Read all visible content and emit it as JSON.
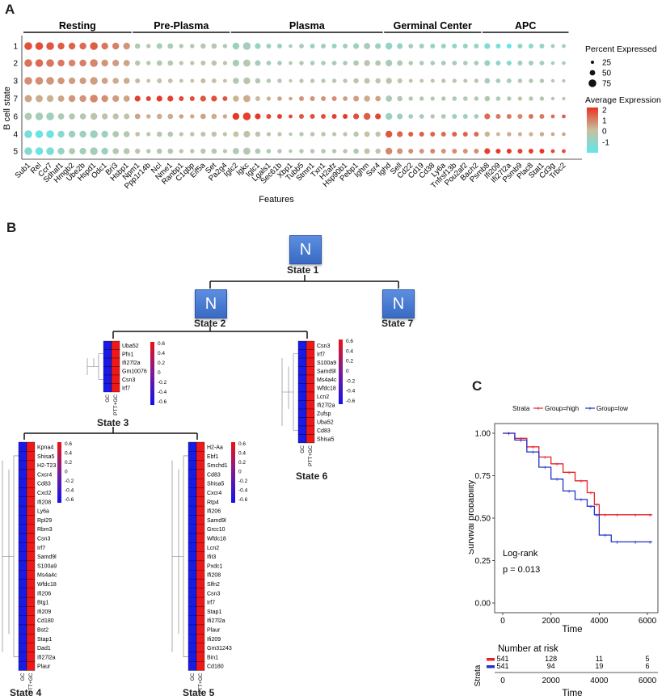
{
  "panels": {
    "a": "A",
    "b": "B",
    "c": "C"
  },
  "chart_data": [
    {
      "type": "dotplot",
      "groups": [
        "Resting",
        "Pre-Plasma",
        "Plasma",
        "Germinal Center",
        "APC"
      ],
      "genes": [
        "Sub1",
        "Rel",
        "Ccr7",
        "Sdhaf1",
        "Hmgb2",
        "Ube2b",
        "Hspd1",
        "Odc1",
        "Bri3",
        "Hsbp1",
        "Npm1",
        "Ppp1r14b",
        "Ncl",
        "Nme1",
        "Ranbp1",
        "C1qbp",
        "Eif5a",
        "Set",
        "Pa2g4",
        "Iglc2",
        "Igkc",
        "Iglc1",
        "Lgals1",
        "Sec61b",
        "Xbp1",
        "Tubb5",
        "Stmn1",
        "Txn1",
        "H2afz",
        "Hsp90b1",
        "Pebp1",
        "Ighm",
        "Ssr4",
        "Ighd",
        "Sell",
        "Cd22",
        "Cd19",
        "Cd38",
        "Ly6a",
        "Tnfrsf13b",
        "Pou2af2",
        "Bach2",
        "Psmb8",
        "Ifi209",
        "Ifi27l2a",
        "Psmb9",
        "Plac8",
        "Stat1",
        "Cd3g",
        "Trbc2"
      ],
      "states": [
        "1",
        "2",
        "3",
        "7",
        "6",
        "4",
        "5"
      ],
      "xlabel": "Features",
      "ylabel": "B cell state",
      "legend_size_title": "Percent Expressed",
      "legend_size_values": [
        "25",
        "50",
        "75"
      ],
      "legend_color_title": "Average Expression",
      "legend_color_ticks": [
        "2",
        "1",
        "0",
        "-1"
      ],
      "colors": {
        "low": "#5ee8ec",
        "mid": "#c8c0a0",
        "high": "#e8321e"
      }
    },
    {
      "type": "line",
      "legend_title": "Strata",
      "series": [
        {
          "name": "Group=high",
          "color": "#e8222a",
          "x": [
            0,
            500,
            1000,
            1500,
            2000,
            2500,
            3000,
            3500,
            3800,
            4000,
            4500,
            5000,
            6000,
            6200
          ],
          "y": [
            1.0,
            0.97,
            0.92,
            0.86,
            0.82,
            0.77,
            0.72,
            0.65,
            0.58,
            0.52,
            0.52,
            0.52,
            0.52,
            0.52
          ]
        },
        {
          "name": "Group=low",
          "color": "#2233c8",
          "x": [
            0,
            500,
            1000,
            1500,
            2000,
            2500,
            3000,
            3500,
            3800,
            4000,
            4500,
            5000,
            6000,
            6200
          ],
          "y": [
            1.0,
            0.96,
            0.89,
            0.8,
            0.73,
            0.66,
            0.61,
            0.57,
            0.52,
            0.4,
            0.36,
            0.36,
            0.36,
            0.36
          ]
        }
      ],
      "xlabel": "Time",
      "ylabel": "Survival probability",
      "xticks": [
        "0",
        "2000",
        "4000",
        "6000"
      ],
      "yticks": [
        "1.00",
        "0.75",
        "0.50",
        "0.25",
        "0.00"
      ],
      "xlim": [
        0,
        6300
      ],
      "ylim": [
        0,
        1
      ],
      "annotation_line1": "Log-rank",
      "annotation_line2": "p = 0.013",
      "risk_table": {
        "title": "Number at risk",
        "ylabel": "Strata",
        "xlabel": "Time",
        "rows": [
          {
            "color": "#e8222a",
            "values": [
              "541",
              "128",
              "11",
              "5"
            ]
          },
          {
            "color": "#2233c8",
            "values": [
              "541",
              "94",
              "19",
              "6"
            ]
          }
        ]
      }
    }
  ],
  "trajectory": {
    "node_label": "N",
    "states": {
      "s1": "State 1",
      "s2": "State 2",
      "s7": "State 7",
      "s3": "State 3",
      "s6": "State 6",
      "s4": "State 4",
      "s5": "State 5"
    },
    "heatmap_cols": [
      "GC",
      "PTT+GC"
    ],
    "scale_ticks": [
      "0.6",
      "0.4",
      "0.2",
      "0",
      "-0.2",
      "-0.4",
      "-0.6"
    ],
    "heatmaps": {
      "s2": [
        "Uba52",
        "Pfn1",
        "Ifi27l2a",
        "Gm10076",
        "Csn3",
        "Irf7"
      ],
      "s6": [
        "Csn3",
        "Irf7",
        "S100a9",
        "Samd9l",
        "Ms4a4c",
        "Wfdc18",
        "Lcn2",
        "Ifi27l2a",
        "Zufsp",
        "Uba52",
        "Cd83",
        "Shisa5"
      ],
      "s4": [
        "Kpna4",
        "Shisa5",
        "H2-T23",
        "Cxcr4",
        "Cd83",
        "Cxcl2",
        "Ifi208",
        "Ly6a",
        "Rpl29",
        "Rbm3",
        "Csn3",
        "Irf7",
        "Samd9l",
        "S100a9",
        "Ms4a4c",
        "Wfdc18",
        "Ifi206",
        "Btg1",
        "Ifi209",
        "Cd180",
        "Bst2",
        "Stap1",
        "Dad1",
        "Ifi27l2a",
        "Plaur"
      ],
      "s5": [
        "H2-Aa",
        "Ebf1",
        "Smchd1",
        "Cd83",
        "Shisa5",
        "Cxcr4",
        "Rtp4",
        "Ifi206",
        "Samd9l",
        "Grcc10",
        "Wfdc18",
        "Lcn2",
        "Ifit3",
        "Pxdc1",
        "Ifi208",
        "Slfn2",
        "Csn3",
        "Irf7",
        "Stap1",
        "Ifi27l2a",
        "Plaur",
        "Ifi209",
        "Gm31243",
        "Bin1",
        "Cd180"
      ]
    }
  }
}
